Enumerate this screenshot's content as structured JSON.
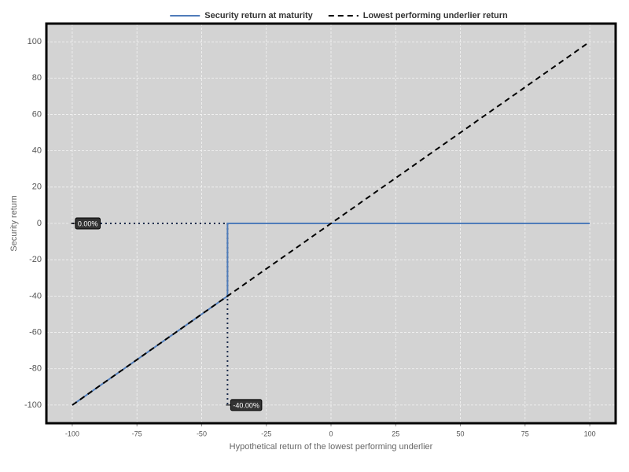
{
  "chart_data": {
    "type": "line",
    "x_label": "Hypothetical return of the lowest performing underlier",
    "y_label": "Security return",
    "series": [
      {
        "name": "Security return at maturity",
        "color": "#4f7cba",
        "style": "solid",
        "x": [
          -100,
          -40,
          -40,
          100
        ],
        "values": [
          -100,
          -40,
          0,
          0
        ]
      },
      {
        "name": "Lowest performing underlier return",
        "color": "#000000",
        "style": "dashed",
        "x": [
          -100,
          100
        ],
        "values": [
          -100,
          100
        ]
      }
    ],
    "annotations": [
      {
        "x": -100,
        "y": 0,
        "label": "0.00%"
      },
      {
        "x": -40,
        "y": -100,
        "label": "-40.00%"
      }
    ],
    "xlim": [
      -110,
      110
    ],
    "ylim": [
      -110,
      110
    ],
    "xticks": [
      -100,
      -75,
      -50,
      -25,
      0,
      25,
      50,
      75,
      100
    ],
    "yticks": [
      -100,
      -80,
      -60,
      -40,
      -20,
      0,
      20,
      40,
      60,
      80,
      100
    ],
    "grid": true,
    "legend": "top"
  }
}
